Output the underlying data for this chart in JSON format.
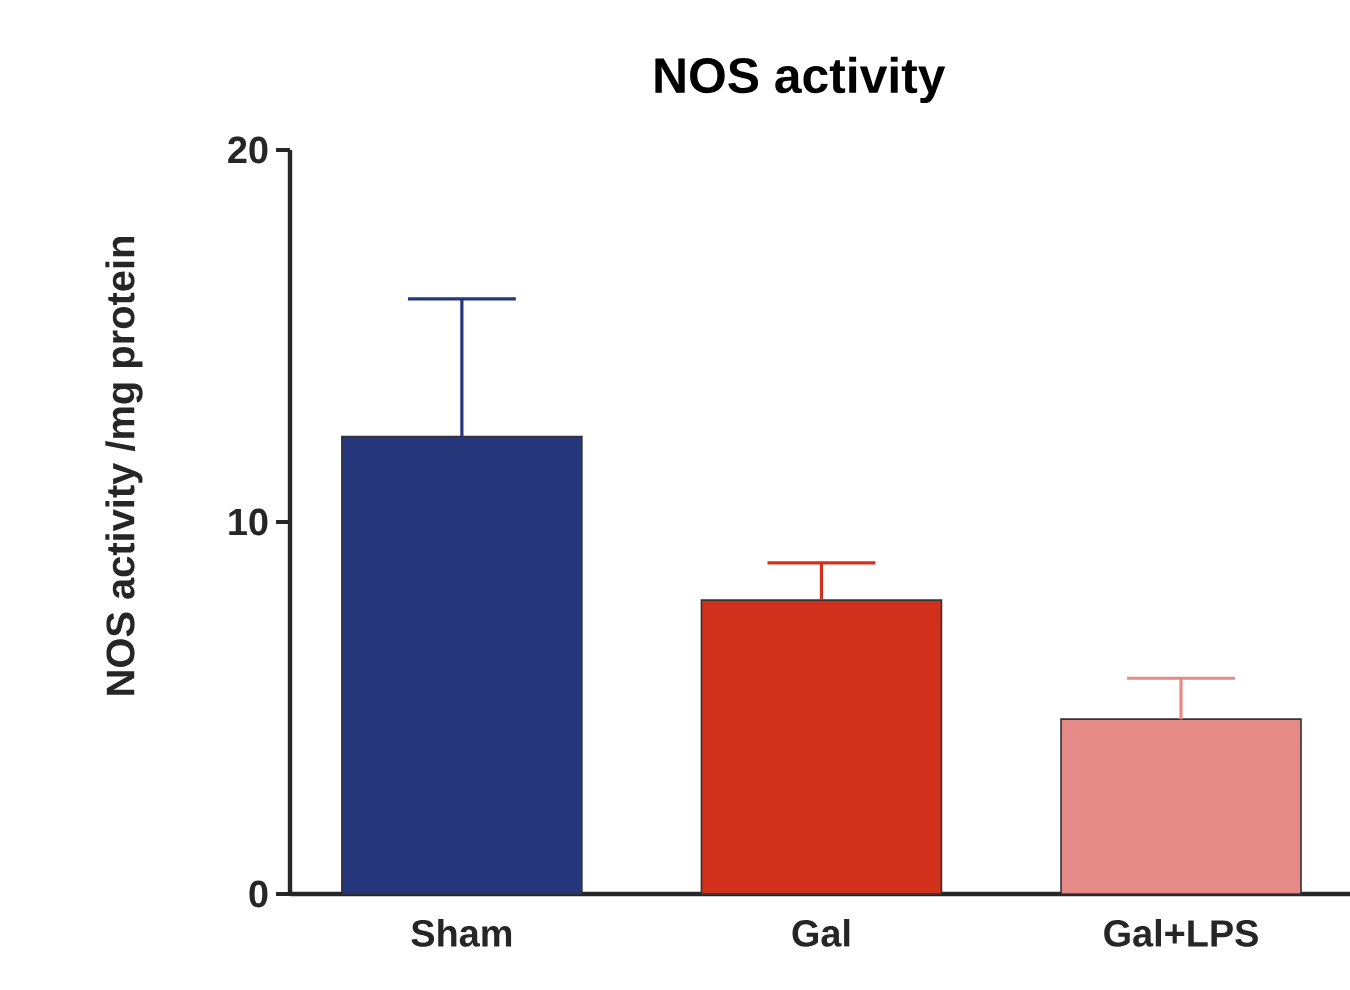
{
  "chart_data": {
    "type": "bar",
    "title": "NOS activity",
    "ylabel": "NOS activity /mg protein",
    "categories": [
      "Sham",
      "Gal",
      "Gal+LPS"
    ],
    "values": [
      12.3,
      7.9,
      4.7
    ],
    "colors": [
      "#26367a",
      "#d0301c",
      "#e58a86"
    ],
    "errors": [
      [
        12.3,
        16.0
      ],
      [
        7.9,
        8.9
      ],
      [
        4.7,
        5.8
      ]
    ],
    "ylim": [
      0,
      20
    ],
    "yticks": [
      0,
      10,
      20
    ]
  }
}
